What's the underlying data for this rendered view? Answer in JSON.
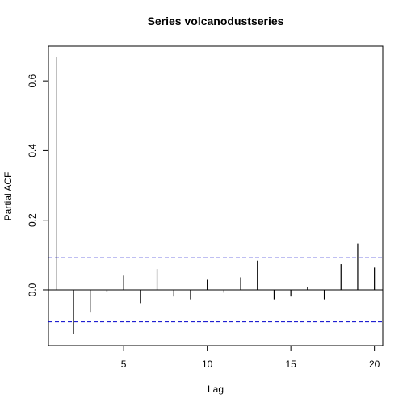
{
  "chart_data": {
    "type": "bar",
    "title": "Series  volcanodustseries",
    "xlabel": "Lag",
    "ylabel": "Partial ACF",
    "xlim": [
      0.5,
      20.5
    ],
    "ylim": [
      -0.16,
      0.7
    ],
    "x_ticks": [
      5,
      10,
      15,
      20
    ],
    "y_ticks": [
      0.0,
      0.2,
      0.4,
      0.6
    ],
    "y_tick_labels": [
      "0.0",
      "0.2",
      "0.4",
      "0.6"
    ],
    "x": [
      1,
      2,
      3,
      4,
      5,
      6,
      7,
      8,
      9,
      10,
      11,
      12,
      13,
      14,
      15,
      16,
      17,
      18,
      19,
      20
    ],
    "values": [
      0.668,
      -0.127,
      -0.063,
      -0.005,
      0.041,
      -0.038,
      0.06,
      -0.019,
      -0.027,
      0.029,
      -0.008,
      0.036,
      0.084,
      -0.027,
      -0.019,
      0.008,
      -0.027,
      0.074,
      0.133,
      0.064
    ],
    "confidence_band": 0.092,
    "band_color": "#0000cc",
    "line_color": "#000000"
  }
}
